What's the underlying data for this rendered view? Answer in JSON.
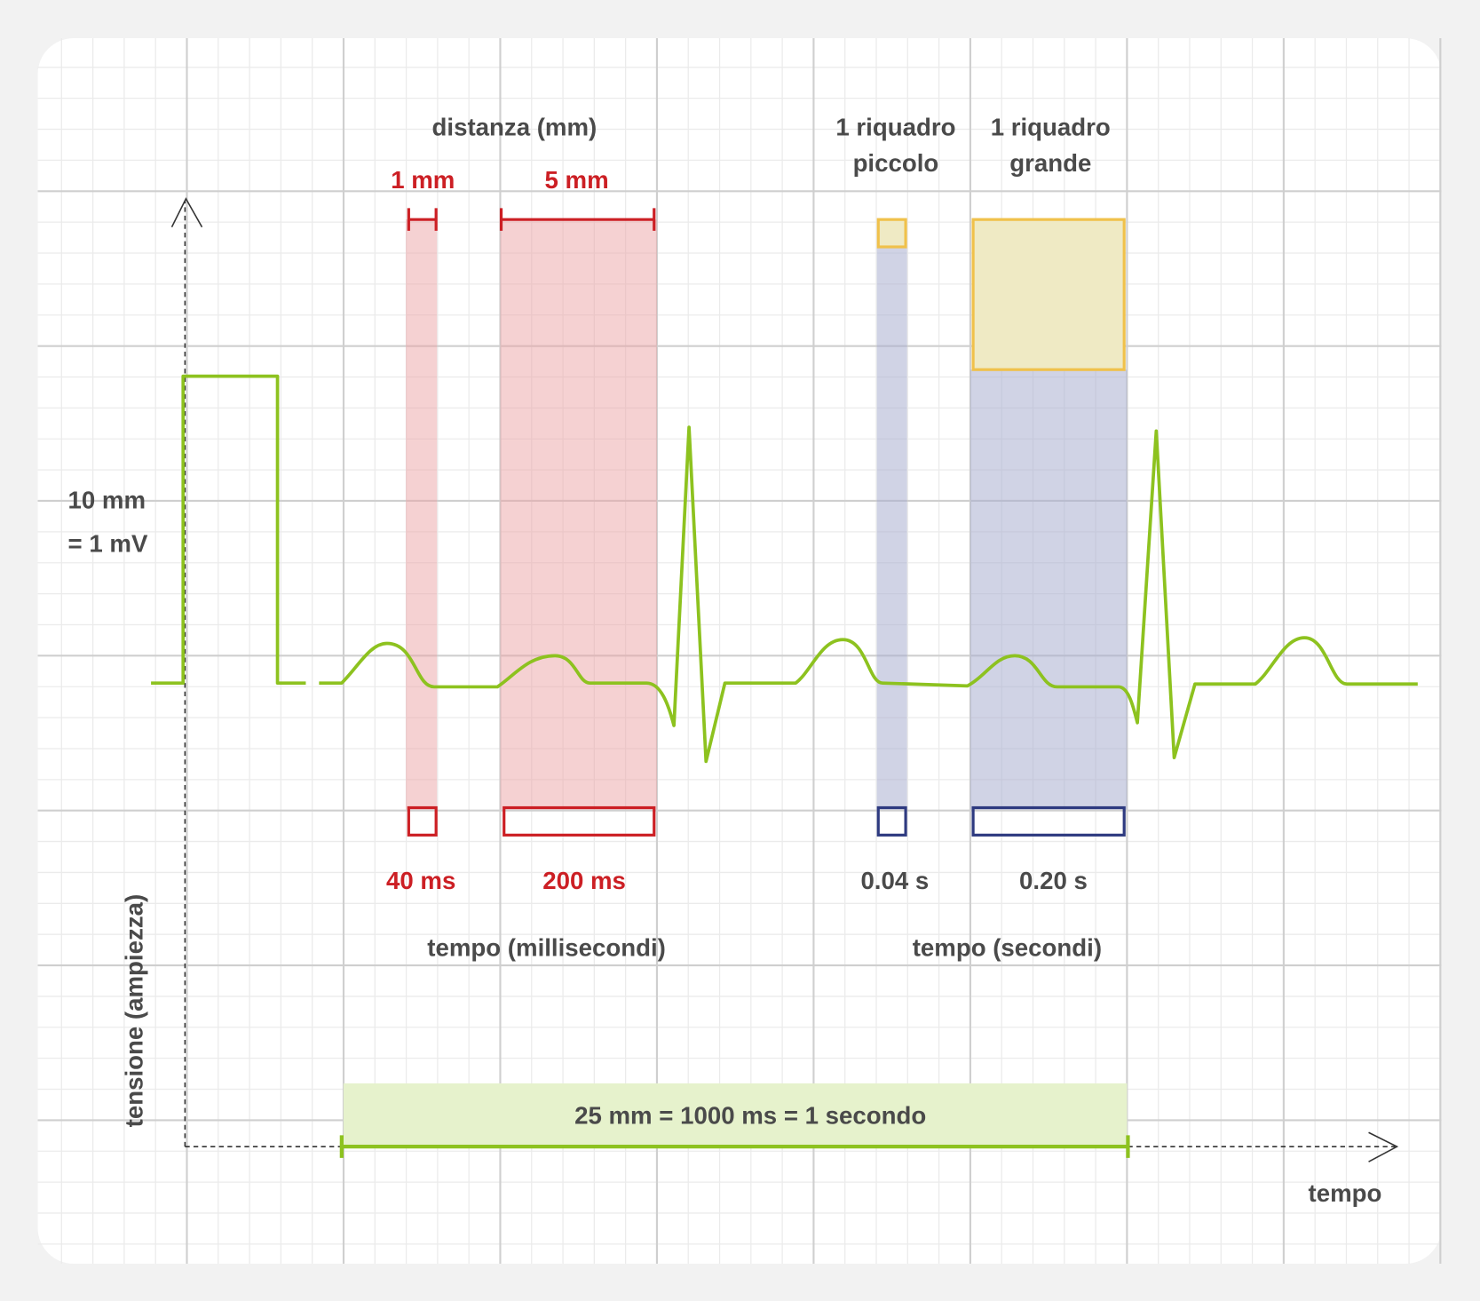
{
  "colors": {
    "background": "#f2f2f2",
    "paper": "#ffffff",
    "grid_minor": "#ebebeb",
    "grid_major": "#cfcfcf",
    "ecg_trace": "#8dc21f",
    "red_measure": "#cc1f24",
    "red_band": "#eba3a6",
    "blue_measure": "#2e3a80",
    "blue_band": "#a9aed0",
    "yellow_box": "#f0c14b",
    "yellow_fill": "#efeac4",
    "green_band": "#e6f2cc",
    "text": "#4a4a4a"
  },
  "labels": {
    "distance_title": "distanza (mm)",
    "one_mm": "1 mm",
    "five_mm": "5 mm",
    "small_box_line1": "1 riquadro",
    "small_box_line2": "piccolo",
    "large_box_line1": "1 riquadro",
    "large_box_line2": "grande",
    "calibration_line1": "10 mm",
    "calibration_line2": "= 1 mV",
    "ms_40": "40 ms",
    "ms_200": "200 ms",
    "s_004": "0.04 s",
    "s_020": "0.20 s",
    "time_ms_title": "tempo (millisecondi)",
    "time_s_title": "tempo (secondi)",
    "one_second": "25 mm = 1000 ms = 1 secondo",
    "y_axis": "tensione (ampiezza)",
    "x_axis": "tempo"
  }
}
